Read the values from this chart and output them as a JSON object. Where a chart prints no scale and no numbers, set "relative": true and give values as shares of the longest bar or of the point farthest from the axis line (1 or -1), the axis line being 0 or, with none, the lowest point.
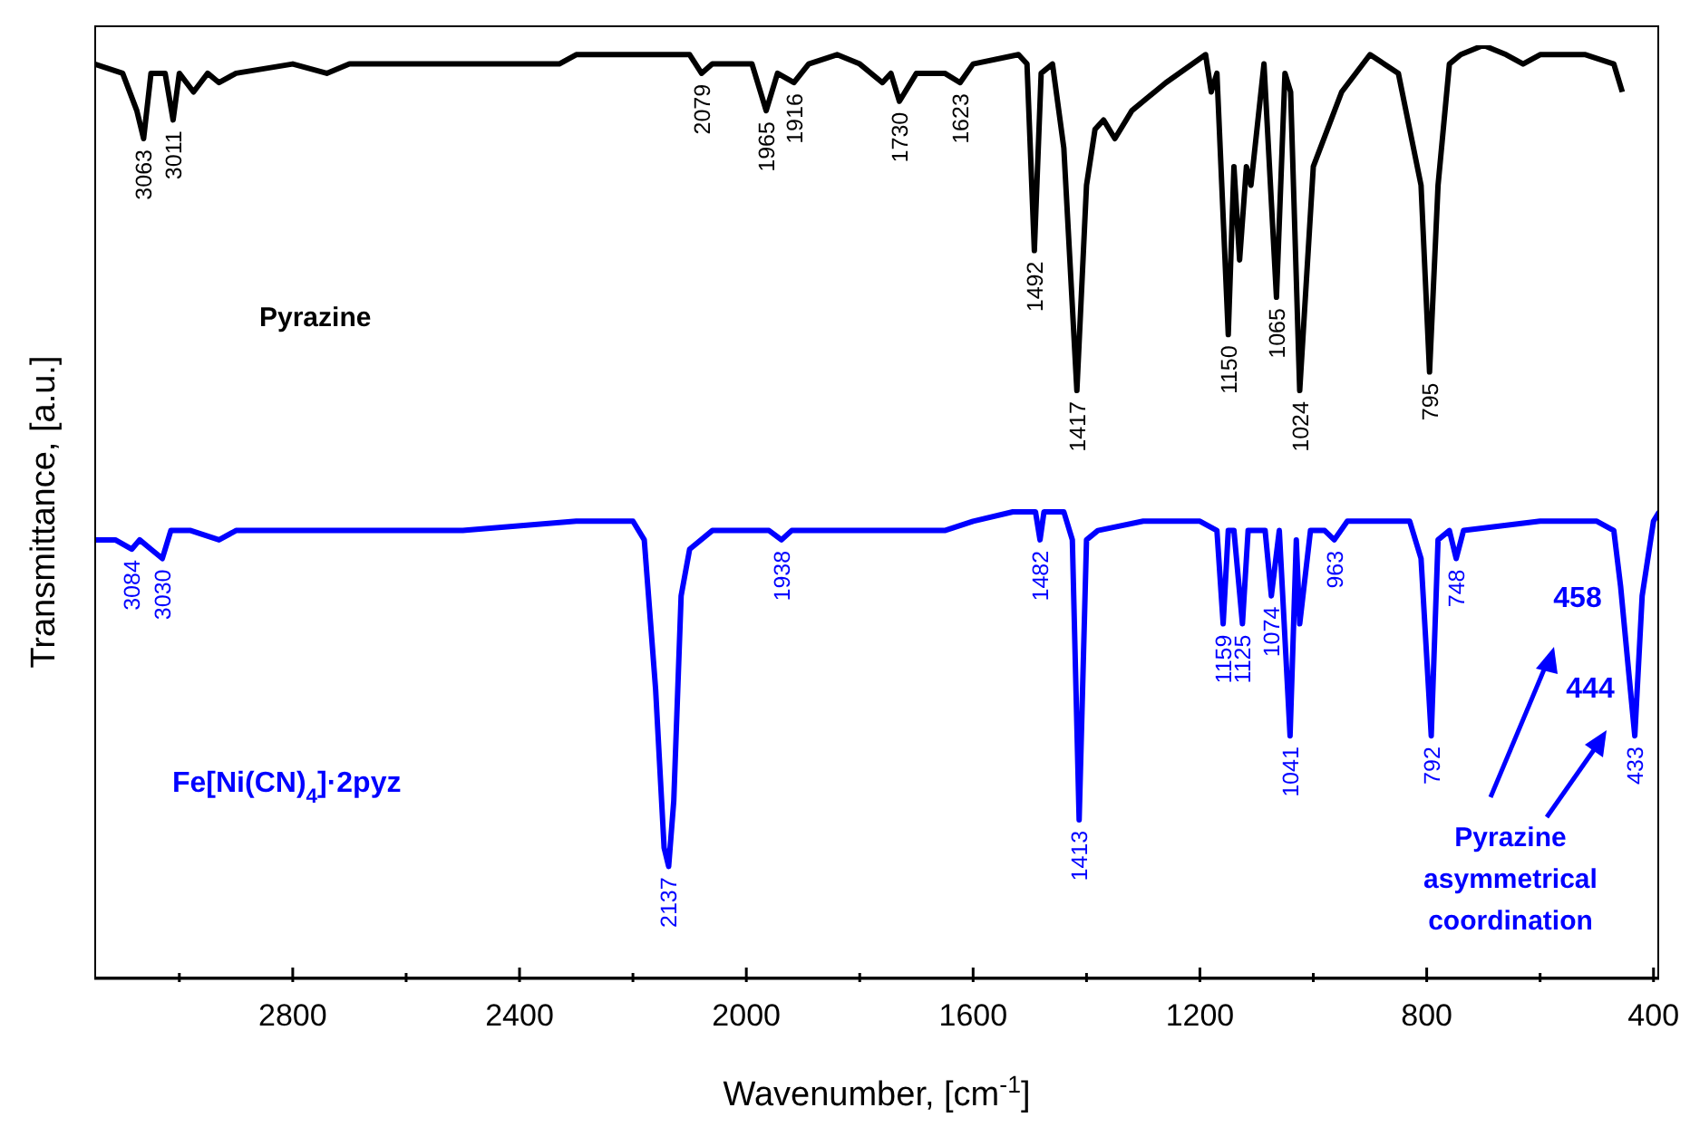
{
  "chart_data": {
    "type": "line",
    "relative": true,
    "xlabel": "Wavenumber, [cm$^{-1}$]",
    "ylabel": "Transmittance, [a.u.]",
    "xlim": [
      3150,
      390
    ],
    "xticks": [
      {
        "value": 3000,
        "label": null
      },
      2800,
      {
        "value": 2600,
        "label": null
      },
      2400,
      {
        "value": 2200,
        "label": null
      },
      2000,
      {
        "value": 1800,
        "label": null
      },
      1600,
      {
        "value": 1400,
        "label": null
      },
      1200,
      {
        "value": 1000,
        "label": null
      },
      800,
      {
        "value": 600,
        "label": null
      },
      400
    ],
    "series": [
      {
        "name": "Pyrazine",
        "color": "#000000",
        "x": [
          3150,
          3100,
          3075,
          3063,
          3050,
          3025,
          3011,
          3000,
          2975,
          2950,
          2930,
          2900,
          2800,
          2740,
          2700,
          2500,
          2330,
          2300,
          2100,
          2079,
          2060,
          1990,
          1965,
          1945,
          1916,
          1890,
          1840,
          1800,
          1760,
          1745,
          1730,
          1700,
          1650,
          1623,
          1600,
          1520,
          1505,
          1492,
          1480,
          1460,
          1440,
          1417,
          1400,
          1385,
          1370,
          1350,
          1320,
          1260,
          1190,
          1180,
          1170,
          1150,
          1140,
          1130,
          1118,
          1110,
          1087,
          1065,
          1050,
          1040,
          1024,
          1000,
          950,
          900,
          850,
          810,
          795,
          780,
          760,
          740,
          700,
          660,
          630,
          600,
          520,
          470,
          455
        ],
        "values": [
          0.98,
          0.97,
          0.93,
          0.9,
          0.97,
          0.97,
          0.92,
          0.97,
          0.95,
          0.97,
          0.96,
          0.97,
          0.98,
          0.97,
          0.98,
          0.98,
          0.98,
          0.99,
          0.99,
          0.97,
          0.98,
          0.98,
          0.93,
          0.97,
          0.96,
          0.98,
          0.99,
          0.98,
          0.96,
          0.97,
          0.94,
          0.97,
          0.97,
          0.96,
          0.98,
          0.99,
          0.98,
          0.78,
          0.97,
          0.98,
          0.89,
          0.63,
          0.85,
          0.91,
          0.92,
          0.9,
          0.93,
          0.96,
          0.99,
          0.95,
          0.97,
          0.69,
          0.87,
          0.77,
          0.87,
          0.85,
          0.98,
          0.73,
          0.97,
          0.95,
          0.63,
          0.87,
          0.95,
          0.99,
          0.97,
          0.85,
          0.65,
          0.85,
          0.98,
          0.99,
          1.0,
          0.99,
          0.98,
          0.99,
          0.99,
          0.98,
          0.95
        ]
      },
      {
        "name": "Fe[Ni(CN)$_{4}$]·2pyz",
        "color": "#0000ff",
        "x": [
          3150,
          3113,
          3084,
          3070,
          3050,
          3030,
          3015,
          2980,
          2930,
          2900,
          2700,
          2500,
          2300,
          2200,
          2180,
          2160,
          2145,
          2137,
          2128,
          2115,
          2100,
          2060,
          1960,
          1938,
          1920,
          1900,
          1800,
          1750,
          1700,
          1650,
          1600,
          1530,
          1490,
          1482,
          1475,
          1440,
          1425,
          1413,
          1400,
          1380,
          1300,
          1200,
          1170,
          1159,
          1150,
          1140,
          1125,
          1115,
          1100,
          1085,
          1074,
          1060,
          1041,
          1030,
          1024,
          1005,
          980,
          963,
          940,
          830,
          810,
          792,
          780,
          760,
          748,
          735,
          600,
          500,
          470,
          458,
          444,
          433,
          420,
          400,
          390
        ],
        "values": [
          0.47,
          0.47,
          0.46,
          0.47,
          0.46,
          0.45,
          0.48,
          0.48,
          0.47,
          0.48,
          0.48,
          0.48,
          0.49,
          0.49,
          0.47,
          0.31,
          0.14,
          0.12,
          0.19,
          0.41,
          0.46,
          0.48,
          0.48,
          0.47,
          0.48,
          0.48,
          0.48,
          0.48,
          0.48,
          0.48,
          0.49,
          0.5,
          0.5,
          0.47,
          0.5,
          0.5,
          0.47,
          0.17,
          0.47,
          0.48,
          0.49,
          0.49,
          0.48,
          0.38,
          0.48,
          0.48,
          0.38,
          0.48,
          0.48,
          0.48,
          0.41,
          0.48,
          0.26,
          0.47,
          0.38,
          0.48,
          0.48,
          0.47,
          0.49,
          0.49,
          0.45,
          0.26,
          0.47,
          0.48,
          0.45,
          0.48,
          0.49,
          0.49,
          0.48,
          0.42,
          0.33,
          0.26,
          0.41,
          0.49,
          0.5
        ]
      }
    ],
    "annotations": [
      {
        "text": "3063",
        "x": 3063,
        "y": 0.9
      },
      {
        "text": "3011",
        "x": 3011,
        "y": 0.92
      },
      {
        "text": "2079",
        "x": 2079,
        "y": 0.97
      },
      {
        "text": "1965",
        "x": 1965,
        "y": 0.93
      },
      {
        "text": "1916",
        "x": 1916,
        "y": 0.96
      },
      {
        "text": "1730",
        "x": 1730,
        "y": 0.94
      },
      {
        "text": "1623",
        "x": 1623,
        "y": 0.96
      },
      {
        "text": "1492",
        "x": 1492,
        "y": 0.78
      },
      {
        "text": "1417",
        "x": 1417,
        "y": 0.63
      },
      {
        "text": "1150",
        "x": 1150,
        "y": 0.69
      },
      {
        "text": "1065",
        "x": 1065,
        "y": 0.73
      },
      {
        "text": "1024",
        "x": 1024,
        "y": 0.63
      },
      {
        "text": "795",
        "x": 795,
        "y": 0.65
      },
      {
        "text": "3084",
        "x": 3084,
        "y": 0.46
      },
      {
        "text": "3030",
        "x": 3030,
        "y": 0.45
      },
      {
        "text": "2137",
        "x": 2137,
        "y": 0.12
      },
      {
        "text": "1938",
        "x": 1938,
        "y": 0.47
      },
      {
        "text": "1482",
        "x": 1482,
        "y": 0.47
      },
      {
        "text": "1413",
        "x": 1413,
        "y": 0.17
      },
      {
        "text": "1159",
        "x": 1159,
        "y": 0.38
      },
      {
        "text": "1125",
        "x": 1125,
        "y": 0.38
      },
      {
        "text": "1074",
        "x": 1074,
        "y": 0.41
      },
      {
        "text": "1041",
        "x": 1041,
        "y": 0.26
      },
      {
        "text": "963",
        "x": 963,
        "y": 0.47
      },
      {
        "text": "792",
        "x": 792,
        "y": 0.26
      },
      {
        "text": "748",
        "x": 748,
        "y": 0.45
      },
      {
        "text": "433",
        "x": 433,
        "y": 0.26
      },
      "458",
      "444",
      "Pyrazine asymmetrical coordination"
    ]
  }
}
